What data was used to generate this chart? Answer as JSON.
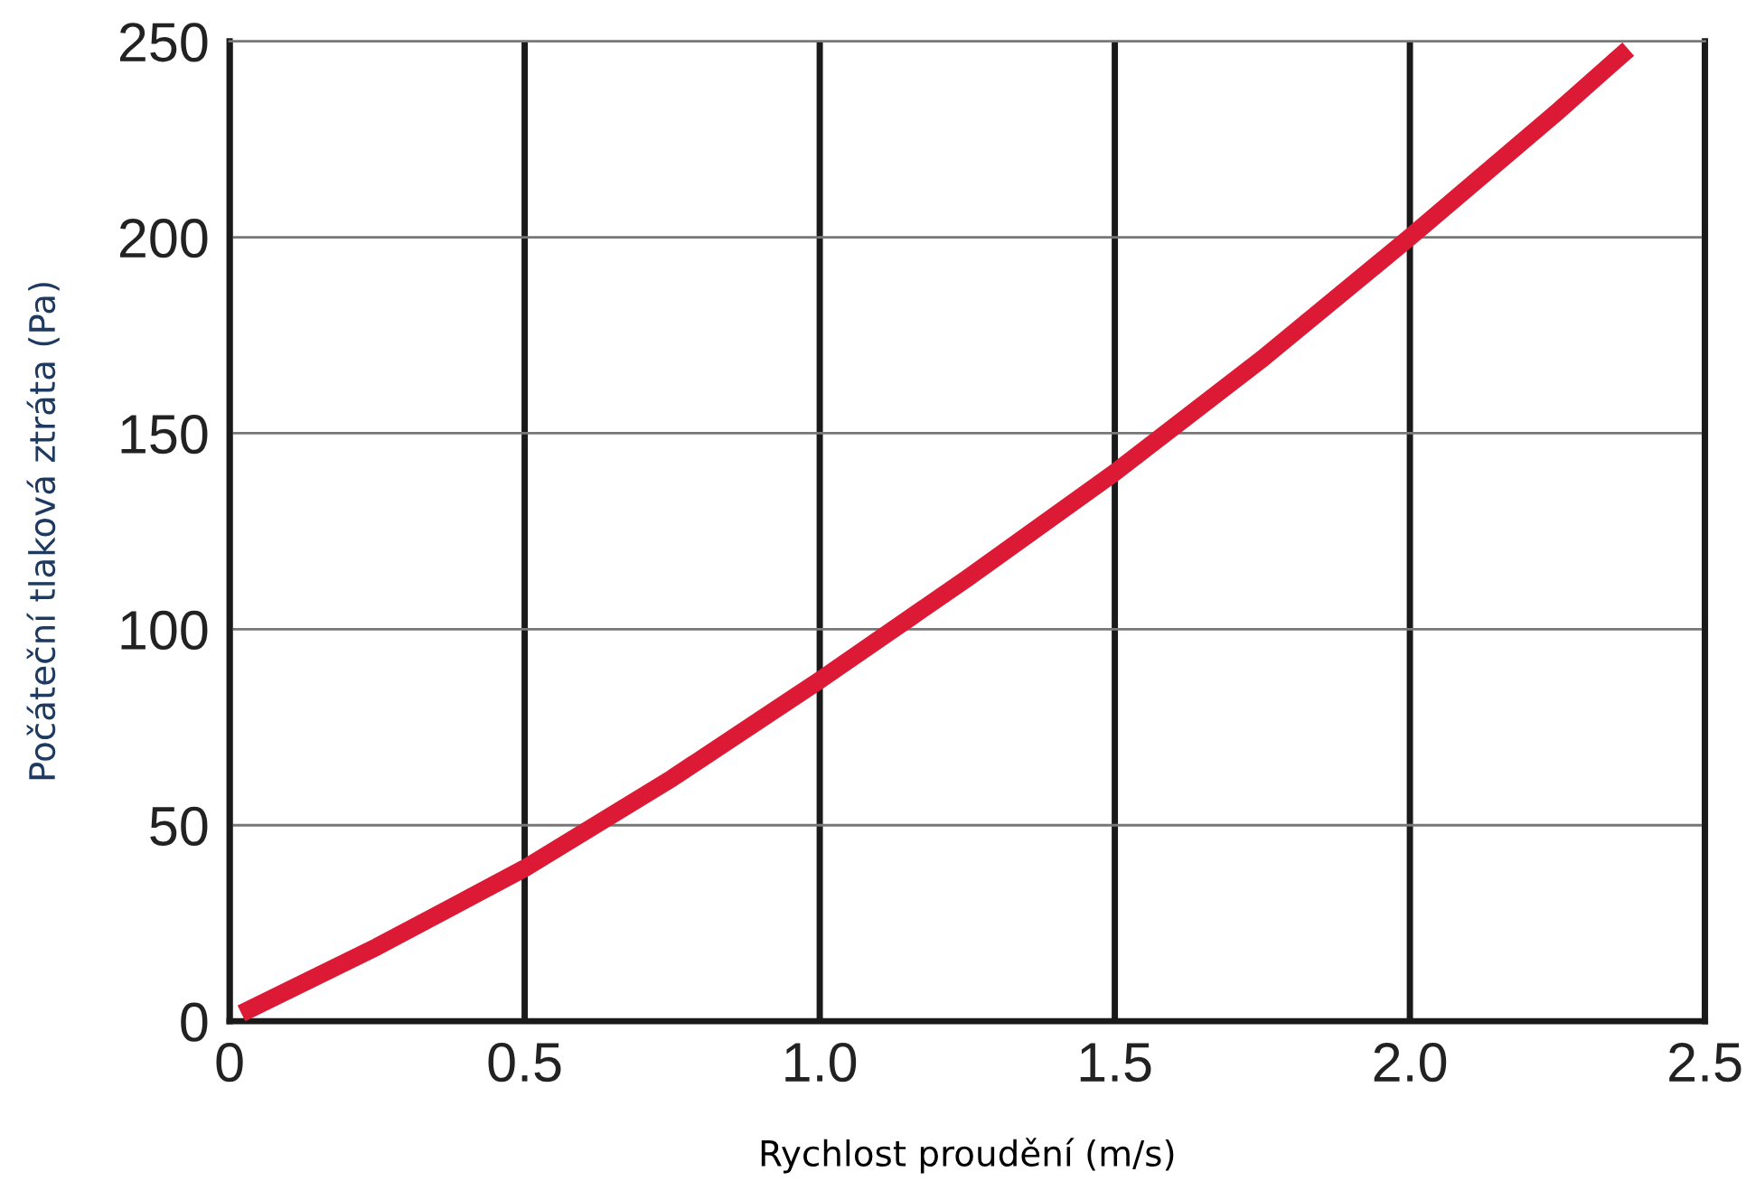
{
  "chart_data": {
    "type": "line",
    "xlabel": "Rychlost proudění (m/s)",
    "ylabel": "Počáteční tlaková ztráta (Pa)",
    "series": [
      {
        "color": "#dc1a36",
        "x": [
          0.02,
          0.25,
          0.5,
          0.75,
          1.0,
          1.25,
          1.5,
          1.75,
          2.0,
          2.25,
          2.37
        ],
        "values": [
          2,
          19,
          39,
          62,
          87,
          113,
          140,
          169,
          200,
          232,
          248
        ]
      }
    ],
    "xlim": [
      0,
      2.5
    ],
    "ylim": [
      0,
      250
    ],
    "xticks": [
      0,
      0.5,
      "1.0",
      1.5,
      "2.0",
      2.5
    ],
    "yticks": [
      0,
      50,
      100,
      150,
      200,
      250
    ],
    "grid": true,
    "marker": "none",
    "line_style": "solid",
    "legend": false
  }
}
